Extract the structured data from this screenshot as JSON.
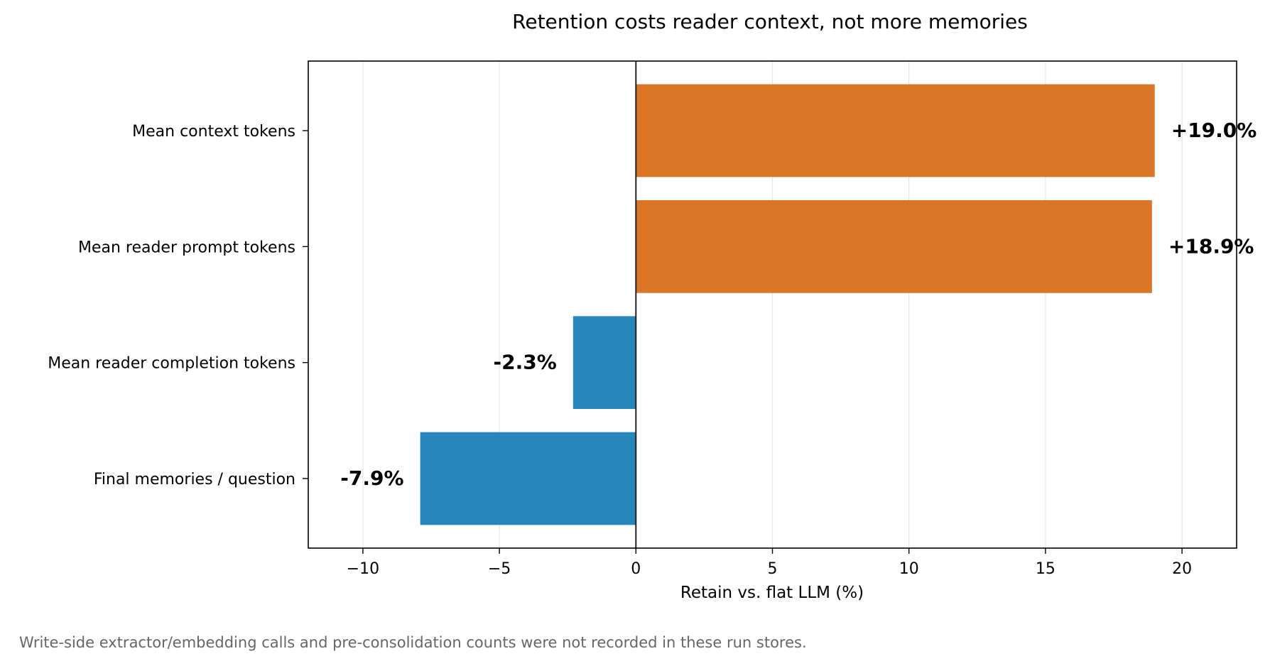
{
  "chart_data": {
    "type": "bar",
    "orientation": "horizontal",
    "title": "Retention costs reader context, not more memories",
    "xlabel": "Retain vs. flat LLM (%)",
    "ylabel": "",
    "xlim": [
      -12,
      22
    ],
    "xticks": [
      -10,
      -5,
      0,
      5,
      10,
      15,
      20
    ],
    "xtick_labels": [
      "−10",
      "−5",
      "0",
      "5",
      "10",
      "15",
      "20"
    ],
    "grid": "vertical",
    "categories": [
      "Mean context tokens",
      "Mean reader prompt tokens",
      "Mean reader completion tokens",
      "Final memories / question"
    ],
    "values": [
      19.0,
      18.9,
      -2.3,
      -7.9
    ],
    "data_labels": [
      "+19.0%",
      "+18.9%",
      "-2.3%",
      "-7.9%"
    ],
    "colors": {
      "positive": "#db7626",
      "negative": "#2787bc",
      "grid": "#e6e6e6",
      "zero_line": "#222222"
    }
  },
  "footnote": "Write-side extractor/embedding calls and pre-consolidation counts were not recorded in these run stores."
}
